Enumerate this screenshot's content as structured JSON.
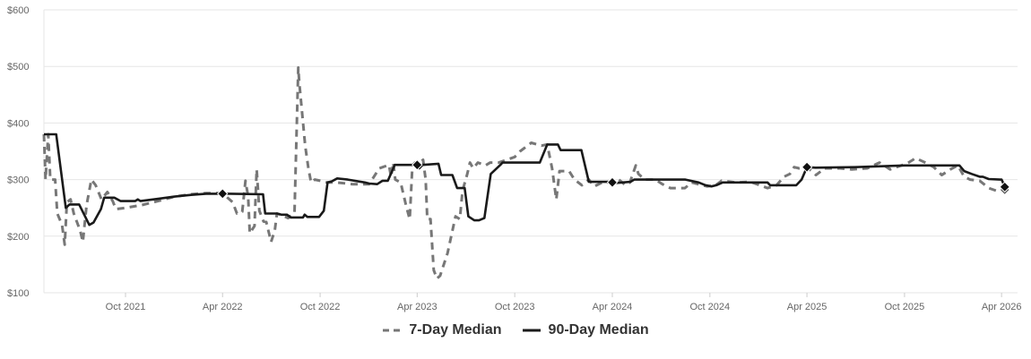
{
  "chart_data": {
    "type": "line",
    "title": "",
    "xlabel": "",
    "ylabel": "",
    "ylim": [
      100,
      600
    ],
    "y_ticks": [
      100,
      200,
      300,
      400,
      500,
      600
    ],
    "y_tick_labels": [
      "$100",
      "$200",
      "$300",
      "$400",
      "$500",
      "$600"
    ],
    "x_range": [
      "2021-05-01",
      "2026-05-01"
    ],
    "x_ticks": [
      {
        "date": "2021-10-01",
        "label": "Oct 2021"
      },
      {
        "date": "2022-04-01",
        "label": "Apr 2022"
      },
      {
        "date": "2022-10-01",
        "label": "Oct 2022"
      },
      {
        "date": "2023-04-01",
        "label": "Apr 2023"
      },
      {
        "date": "2023-10-01",
        "label": "Oct 2023"
      },
      {
        "date": "2024-04-01",
        "label": "Apr 2024"
      },
      {
        "date": "2024-10-01",
        "label": "Oct 2024"
      },
      {
        "date": "2025-04-01",
        "label": "Apr 2025"
      },
      {
        "date": "2025-10-01",
        "label": "Oct 2025"
      },
      {
        "date": "2026-04-01",
        "label": "Apr 2026"
      }
    ],
    "grid": true,
    "legend_position": "bottom",
    "series": [
      {
        "name": "7-Day Median",
        "style": "dashed",
        "color": "#777777",
        "points": [
          [
            "2021-05-01",
            380
          ],
          [
            "2021-05-04",
            300
          ],
          [
            "2021-05-09",
            380
          ],
          [
            "2021-05-13",
            300
          ],
          [
            "2021-05-22",
            300
          ],
          [
            "2021-05-26",
            240
          ],
          [
            "2021-06-04",
            220
          ],
          [
            "2021-06-09",
            185
          ],
          [
            "2021-06-13",
            260
          ],
          [
            "2021-06-20",
            265
          ],
          [
            "2021-06-26",
            240
          ],
          [
            "2021-07-08",
            210
          ],
          [
            "2021-07-13",
            190
          ],
          [
            "2021-07-20",
            255
          ],
          [
            "2021-07-29",
            300
          ],
          [
            "2021-08-06",
            290
          ],
          [
            "2021-08-17",
            265
          ],
          [
            "2021-08-28",
            278
          ],
          [
            "2021-09-07",
            262
          ],
          [
            "2021-09-13",
            248
          ],
          [
            "2021-10-01",
            250
          ],
          [
            "2021-11-01",
            255
          ],
          [
            "2021-12-01",
            262
          ],
          [
            "2022-01-01",
            270
          ],
          [
            "2022-02-01",
            274
          ],
          [
            "2022-03-01",
            276
          ],
          [
            "2022-04-01",
            276
          ],
          [
            "2022-04-20",
            260
          ],
          [
            "2022-04-28",
            240
          ],
          [
            "2022-05-08",
            243
          ],
          [
            "2022-05-14",
            298
          ],
          [
            "2022-05-19",
            270
          ],
          [
            "2022-05-22",
            205
          ],
          [
            "2022-05-31",
            218
          ],
          [
            "2022-06-04",
            318
          ],
          [
            "2022-06-09",
            245
          ],
          [
            "2022-06-17",
            226
          ],
          [
            "2022-06-22",
            225
          ],
          [
            "2022-07-01",
            190
          ],
          [
            "2022-07-08",
            210
          ],
          [
            "2022-07-12",
            240
          ],
          [
            "2022-07-19",
            238
          ],
          [
            "2022-08-02",
            232
          ],
          [
            "2022-08-14",
            242
          ],
          [
            "2022-08-21",
            498
          ],
          [
            "2022-08-23",
            470
          ],
          [
            "2022-09-03",
            360
          ],
          [
            "2022-09-09",
            320
          ],
          [
            "2022-09-14",
            295
          ],
          [
            "2022-09-21",
            300
          ],
          [
            "2022-10-01",
            298
          ],
          [
            "2022-10-14",
            295
          ],
          [
            "2022-11-01",
            295
          ],
          [
            "2022-12-01",
            292
          ],
          [
            "2023-01-01",
            292
          ],
          [
            "2023-01-20",
            320
          ],
          [
            "2023-02-07",
            326
          ],
          [
            "2023-02-11",
            305
          ],
          [
            "2023-02-15",
            330
          ],
          [
            "2023-02-19",
            300
          ],
          [
            "2023-03-01",
            295
          ],
          [
            "2023-03-11",
            255
          ],
          [
            "2023-03-18",
            230
          ],
          [
            "2023-03-23",
            325
          ],
          [
            "2023-03-28",
            330
          ],
          [
            "2023-04-03",
            328
          ],
          [
            "2023-04-12",
            335
          ],
          [
            "2023-04-17",
            300
          ],
          [
            "2023-04-20",
            230
          ],
          [
            "2023-04-26",
            230
          ],
          [
            "2023-05-02",
            140
          ],
          [
            "2023-05-08",
            125
          ],
          [
            "2023-05-14",
            130
          ],
          [
            "2023-05-28",
            170
          ],
          [
            "2023-06-12",
            235
          ],
          [
            "2023-06-20",
            230
          ],
          [
            "2023-06-25",
            280
          ],
          [
            "2023-07-04",
            310
          ],
          [
            "2023-07-09",
            330
          ],
          [
            "2023-07-15",
            320
          ],
          [
            "2023-07-24",
            330
          ],
          [
            "2023-08-07",
            325
          ],
          [
            "2023-08-16",
            330
          ],
          [
            "2023-09-01",
            330
          ],
          [
            "2023-10-01",
            340
          ],
          [
            "2023-10-11",
            350
          ],
          [
            "2023-11-01",
            365
          ],
          [
            "2023-11-20",
            360
          ],
          [
            "2023-12-01",
            362
          ],
          [
            "2023-12-10",
            320
          ],
          [
            "2023-12-18",
            265
          ],
          [
            "2023-12-24",
            315
          ],
          [
            "2024-01-11",
            315
          ],
          [
            "2024-01-21",
            300
          ],
          [
            "2024-02-04",
            290
          ],
          [
            "2024-02-17",
            300
          ],
          [
            "2024-02-27",
            288
          ],
          [
            "2024-03-13",
            295
          ],
          [
            "2024-04-01",
            295
          ],
          [
            "2024-04-13",
            300
          ],
          [
            "2024-04-26",
            290
          ],
          [
            "2024-05-04",
            295
          ],
          [
            "2024-05-15",
            325
          ],
          [
            "2024-05-20",
            310
          ],
          [
            "2024-06-01",
            300
          ],
          [
            "2024-06-21",
            300
          ],
          [
            "2024-07-04",
            292
          ],
          [
            "2024-07-19",
            285
          ],
          [
            "2024-08-15",
            285
          ],
          [
            "2024-08-28",
            295
          ],
          [
            "2024-09-26",
            288
          ],
          [
            "2024-10-12",
            290
          ],
          [
            "2024-10-23",
            298
          ],
          [
            "2024-11-19",
            295
          ],
          [
            "2024-12-16",
            296
          ],
          [
            "2025-01-03",
            290
          ],
          [
            "2025-01-17",
            285
          ],
          [
            "2025-02-03",
            290
          ],
          [
            "2025-02-17",
            305
          ],
          [
            "2025-02-28",
            310
          ],
          [
            "2025-03-08",
            322
          ],
          [
            "2025-03-17",
            320
          ],
          [
            "2025-04-01",
            322
          ],
          [
            "2025-04-06",
            318
          ],
          [
            "2025-04-18",
            308
          ],
          [
            "2025-05-04",
            320
          ],
          [
            "2025-06-02",
            320
          ],
          [
            "2025-06-24",
            318
          ],
          [
            "2025-07-23",
            320
          ],
          [
            "2025-08-15",
            330
          ],
          [
            "2025-09-04",
            318
          ],
          [
            "2025-09-25",
            325
          ],
          [
            "2025-10-05",
            328
          ],
          [
            "2025-10-22",
            338
          ],
          [
            "2025-11-09",
            330
          ],
          [
            "2025-11-25",
            322
          ],
          [
            "2025-12-10",
            308
          ],
          [
            "2025-12-26",
            318
          ],
          [
            "2026-01-09",
            325
          ],
          [
            "2026-01-21",
            305
          ],
          [
            "2026-02-01",
            300
          ],
          [
            "2026-02-19",
            298
          ],
          [
            "2026-03-08",
            285
          ],
          [
            "2026-03-23",
            280
          ],
          [
            "2026-04-01",
            280
          ],
          [
            "2026-04-05",
            285
          ],
          [
            "2026-04-07",
            280
          ]
        ],
        "markers": [
          [
            "2026-04-07",
            282
          ]
        ]
      },
      {
        "name": "90-Day Median",
        "style": "solid",
        "color": "#1a1a1a",
        "points": [
          [
            "2021-05-01",
            380
          ],
          [
            "2021-05-24",
            380
          ],
          [
            "2021-06-11",
            250
          ],
          [
            "2021-06-18",
            256
          ],
          [
            "2021-07-06",
            256
          ],
          [
            "2021-07-25",
            220
          ],
          [
            "2021-08-02",
            224
          ],
          [
            "2021-08-16",
            248
          ],
          [
            "2021-08-22",
            268
          ],
          [
            "2021-09-10",
            268
          ],
          [
            "2021-09-22",
            262
          ],
          [
            "2021-10-19",
            262
          ],
          [
            "2021-10-24",
            265
          ],
          [
            "2021-10-29",
            262
          ],
          [
            "2021-12-01",
            266
          ],
          [
            "2022-01-01",
            270
          ],
          [
            "2022-02-01",
            273
          ],
          [
            "2022-03-01",
            275
          ],
          [
            "2022-04-01",
            275
          ],
          [
            "2022-04-16",
            275
          ],
          [
            "2022-06-16",
            274
          ],
          [
            "2022-06-20",
            240
          ],
          [
            "2022-07-12",
            240
          ],
          [
            "2022-07-20",
            238
          ],
          [
            "2022-07-31",
            238
          ],
          [
            "2022-08-07",
            233
          ],
          [
            "2022-08-30",
            233
          ],
          [
            "2022-09-02",
            238
          ],
          [
            "2022-09-07",
            234
          ],
          [
            "2022-09-29",
            234
          ],
          [
            "2022-10-08",
            245
          ],
          [
            "2022-10-15",
            295
          ],
          [
            "2022-10-23",
            297
          ],
          [
            "2022-11-02",
            302
          ],
          [
            "2022-11-22",
            300
          ],
          [
            "2022-12-24",
            295
          ],
          [
            "2023-01-01",
            293
          ],
          [
            "2023-01-16",
            292
          ],
          [
            "2023-01-26",
            298
          ],
          [
            "2023-02-05",
            298
          ],
          [
            "2023-02-12",
            313
          ],
          [
            "2023-02-18",
            326
          ],
          [
            "2023-03-31",
            326
          ],
          [
            "2023-04-05",
            320
          ],
          [
            "2023-04-11",
            326
          ],
          [
            "2023-05-11",
            328
          ],
          [
            "2023-05-16",
            308
          ],
          [
            "2023-06-06",
            308
          ],
          [
            "2023-06-15",
            285
          ],
          [
            "2023-06-29",
            285
          ],
          [
            "2023-07-06",
            235
          ],
          [
            "2023-07-17",
            228
          ],
          [
            "2023-07-26",
            228
          ],
          [
            "2023-08-05",
            232
          ],
          [
            "2023-08-17",
            310
          ],
          [
            "2023-09-04",
            326
          ],
          [
            "2023-09-08",
            330
          ],
          [
            "2023-11-17",
            330
          ],
          [
            "2023-12-01",
            362
          ],
          [
            "2023-12-21",
            362
          ],
          [
            "2023-12-26",
            352
          ],
          [
            "2024-02-03",
            352
          ],
          [
            "2024-02-17",
            296
          ],
          [
            "2024-03-30",
            296
          ],
          [
            "2024-04-07",
            294
          ],
          [
            "2024-05-05",
            296
          ],
          [
            "2024-05-12",
            300
          ],
          [
            "2024-08-01",
            300
          ],
          [
            "2024-08-16",
            300
          ],
          [
            "2024-09-10",
            295
          ],
          [
            "2024-09-23",
            290
          ],
          [
            "2024-10-04",
            288
          ],
          [
            "2024-10-13",
            290
          ],
          [
            "2024-10-25",
            295
          ],
          [
            "2025-01-17",
            295
          ],
          [
            "2025-01-22",
            290
          ],
          [
            "2025-03-12",
            290
          ],
          [
            "2025-03-22",
            300
          ],
          [
            "2025-04-01",
            322
          ],
          [
            "2025-04-17",
            321
          ],
          [
            "2025-06-30",
            322
          ],
          [
            "2025-10-01",
            325
          ],
          [
            "2026-01-12",
            325
          ],
          [
            "2026-01-21",
            315
          ],
          [
            "2026-02-04",
            310
          ],
          [
            "2026-02-19",
            305
          ],
          [
            "2026-02-25",
            305
          ],
          [
            "2026-03-08",
            301
          ],
          [
            "2026-03-29",
            300
          ],
          [
            "2026-04-01",
            300
          ],
          [
            "2026-04-07",
            288
          ]
        ],
        "markers": [
          [
            "2022-04-01",
            275
          ],
          [
            "2023-04-01",
            326
          ],
          [
            "2024-04-01",
            295
          ],
          [
            "2025-04-01",
            322
          ],
          [
            "2026-04-07",
            287
          ]
        ]
      }
    ]
  },
  "colors": {
    "grid": "#e6e6e6",
    "axis_text": "#666666",
    "legend_text": "#333333",
    "background": "#ffffff"
  }
}
